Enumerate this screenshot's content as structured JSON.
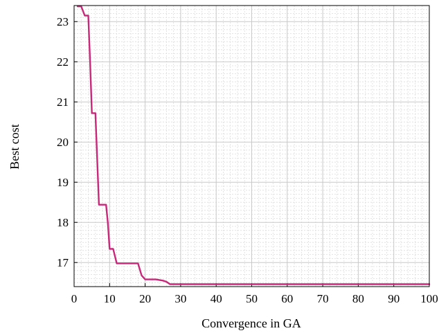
{
  "chart_data": {
    "type": "line",
    "title": "",
    "xlabel": "Convergence in GA",
    "ylabel": "Best cost",
    "xlim": [
      0,
      100
    ],
    "ylim": [
      16.4,
      23.4
    ],
    "xticks": [
      0,
      10,
      20,
      30,
      40,
      50,
      60,
      70,
      80,
      90,
      100
    ],
    "yticks": [
      17,
      18,
      19,
      20,
      21,
      22,
      23
    ],
    "grid": true,
    "line_color": "#c8287a",
    "series": [
      {
        "x": [
          1,
          2,
          3,
          4,
          4.5,
          5,
          6,
          7,
          8,
          9,
          9.5,
          10,
          11,
          12,
          15,
          18,
          19,
          20,
          23,
          25,
          26,
          27,
          30,
          40,
          50,
          60,
          70,
          80,
          90,
          100
        ],
        "y": [
          23.38,
          23.38,
          23.15,
          23.15,
          22.0,
          20.72,
          20.72,
          18.44,
          18.44,
          18.44,
          18.0,
          17.34,
          17.34,
          16.98,
          16.98,
          16.98,
          16.68,
          16.58,
          16.58,
          16.55,
          16.52,
          16.46,
          16.46,
          16.46,
          16.46,
          16.46,
          16.46,
          16.46,
          16.46,
          16.46
        ]
      }
    ]
  }
}
